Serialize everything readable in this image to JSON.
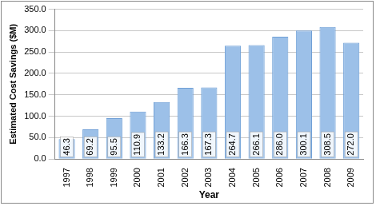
{
  "chart_data": {
    "type": "bar",
    "x_label": "Year",
    "y_label": "Estimated Cost Savings ($M)",
    "categories": [
      "1997",
      "1998",
      "1999",
      "2000",
      "2001",
      "2002",
      "2003",
      "2004",
      "2005",
      "2006",
      "2007",
      "2008",
      "2009"
    ],
    "values": [
      46.3,
      69.2,
      95.5,
      110.9,
      133.2,
      166.3,
      167.3,
      264.7,
      266.1,
      286.0,
      300.1,
      308.5,
      272.0
    ],
    "value_labels": [
      "46.3",
      "69.2",
      "95.5",
      "110.9",
      "133.2",
      "166.3",
      "167.3",
      "264.7",
      "266.1",
      "286.0",
      "300.1",
      "308.5",
      "272.0"
    ],
    "color": "#9cc0e8",
    "ylim": [
      0,
      350
    ],
    "yticks": [
      {
        "value": 0,
        "label": "0.0"
      },
      {
        "value": 50,
        "label": "50.0"
      },
      {
        "value": 100,
        "label": "100.0"
      },
      {
        "value": 150,
        "label": "150.0"
      },
      {
        "value": 200,
        "label": "200.0"
      },
      {
        "value": 250,
        "label": "250.0"
      },
      {
        "value": 300,
        "label": "300.0"
      },
      {
        "value": 350,
        "label": "350.0"
      }
    ],
    "grid": true,
    "data_labels": true
  }
}
